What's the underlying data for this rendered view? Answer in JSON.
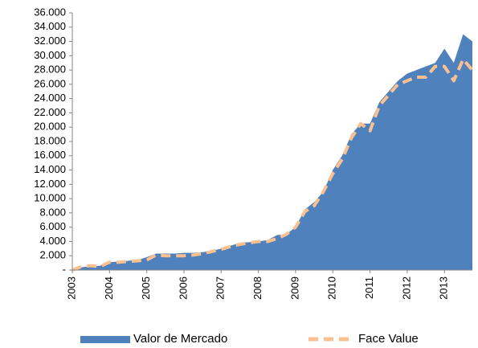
{
  "chart_data": {
    "type": "area",
    "categories": [
      "2003",
      null,
      null,
      null,
      "2004",
      null,
      null,
      null,
      "2005",
      null,
      null,
      null,
      "2006",
      null,
      null,
      null,
      "2007",
      null,
      null,
      null,
      "2008",
      null,
      null,
      null,
      "2009",
      null,
      null,
      null,
      "2010",
      null,
      null,
      null,
      "2011",
      null,
      null,
      null,
      "2012",
      null,
      null,
      null,
      "2013",
      null,
      null,
      null
    ],
    "series": [
      {
        "name": "Valor de Mercado",
        "color": "#4f81bd",
        "style": "area",
        "values": [
          200,
          400,
          500,
          600,
          1100,
          1200,
          1300,
          1400,
          1800,
          2300,
          2300,
          2300,
          2400,
          2400,
          2500,
          2700,
          3000,
          3400,
          3800,
          3900,
          4000,
          4200,
          4900,
          5000,
          6000,
          8500,
          9500,
          11000,
          14000,
          16000,
          19000,
          20500,
          20500,
          23500,
          25000,
          26500,
          27500,
          28000,
          28500,
          29000,
          31000,
          29000,
          33000,
          32000
        ]
      },
      {
        "name": "Face Value",
        "color": "#fac090",
        "style": "dashed-line",
        "values": [
          0,
          500,
          600,
          500,
          1100,
          1100,
          1200,
          1300,
          1400,
          2100,
          2000,
          2000,
          2000,
          2100,
          2300,
          2600,
          2900,
          3300,
          3600,
          3800,
          4000,
          4000,
          4400,
          5000,
          6000,
          8200,
          9000,
          11000,
          13500,
          15500,
          18500,
          20500,
          19500,
          23000,
          24500,
          26000,
          26500,
          27000,
          27000,
          28500,
          28500,
          26500,
          29500,
          28000
        ]
      }
    ],
    "ylim": [
      0,
      36000
    ],
    "yticks": [
      {
        "value": 0,
        "label": "-"
      },
      {
        "value": 2000,
        "label": "2.000"
      },
      {
        "value": 4000,
        "label": "4.000"
      },
      {
        "value": 6000,
        "label": "6.000"
      },
      {
        "value": 8000,
        "label": "8.000"
      },
      {
        "value": 10000,
        "label": "10.000"
      },
      {
        "value": 12000,
        "label": "12.000"
      },
      {
        "value": 14000,
        "label": "14.000"
      },
      {
        "value": 16000,
        "label": "16.000"
      },
      {
        "value": 18000,
        "label": "18.000"
      },
      {
        "value": 20000,
        "label": "20.000"
      },
      {
        "value": 22000,
        "label": "22.000"
      },
      {
        "value": 24000,
        "label": "24.000"
      },
      {
        "value": 26000,
        "label": "26.000"
      },
      {
        "value": 28000,
        "label": "28.000"
      },
      {
        "value": 30000,
        "label": "30.000"
      },
      {
        "value": 32000,
        "label": "32.000"
      },
      {
        "value": 34000,
        "label": "34.000"
      },
      {
        "value": 36000,
        "label": "36.000"
      }
    ],
    "grid": false,
    "legend": "bottom"
  }
}
